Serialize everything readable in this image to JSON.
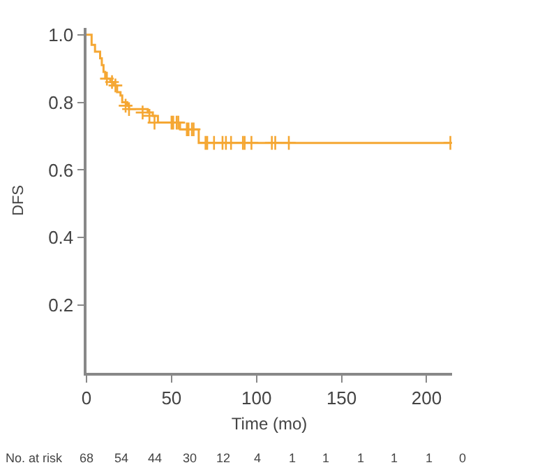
{
  "chart_data": {
    "type": "step",
    "xlabel": "Time (mo)",
    "ylabel": "DFS",
    "xlim": [
      0,
      215
    ],
    "ylim": [
      0,
      1.02
    ],
    "xticks": [
      0,
      50,
      100,
      150,
      200
    ],
    "yticks": [
      {
        "value": 0.2,
        "label": "0.2"
      },
      {
        "value": 0.4,
        "label": "0.4"
      },
      {
        "value": 0.6,
        "label": "0.6"
      },
      {
        "value": 0.8,
        "label": "0.8"
      },
      {
        "value": 1,
        "label": "1.0"
      }
    ],
    "marker": "none",
    "line_style": "solid",
    "series": [
      {
        "color": "#f5a733",
        "x": [
          0,
          3,
          5,
          8,
          9,
          10,
          11,
          14,
          16,
          18,
          20,
          21,
          24,
          25,
          36,
          39,
          42,
          55,
          66,
          214
        ],
        "values": [
          1.0,
          0.97,
          0.95,
          0.93,
          0.91,
          0.89,
          0.87,
          0.86,
          0.85,
          0.83,
          0.82,
          0.8,
          0.79,
          0.78,
          0.77,
          0.76,
          0.74,
          0.72,
          0.68,
          0.68
        ]
      },
      {
        "type": "scatter",
        "marker": "cross",
        "color": "#f5a733",
        "x": [
          12,
          15,
          17,
          23,
          25,
          33,
          37,
          40,
          50,
          51,
          53,
          54,
          59,
          60,
          62,
          63,
          70,
          71,
          75,
          80,
          82,
          85,
          92,
          93,
          97,
          109,
          111,
          119,
          214
        ],
        "values": [
          0.87,
          0.86,
          0.85,
          0.79,
          0.78,
          0.77,
          0.76,
          0.74,
          0.74,
          0.74,
          0.74,
          0.74,
          0.72,
          0.72,
          0.72,
          0.72,
          0.68,
          0.68,
          0.68,
          0.68,
          0.68,
          0.68,
          0.68,
          0.68,
          0.68,
          0.68,
          0.68,
          0.68,
          0.68
        ]
      }
    ],
    "annotations": [
      "No. at risk",
      "68",
      "54",
      "44",
      "30",
      "12",
      "4",
      "1",
      "1",
      "1",
      "1",
      "1",
      "0"
    ]
  }
}
